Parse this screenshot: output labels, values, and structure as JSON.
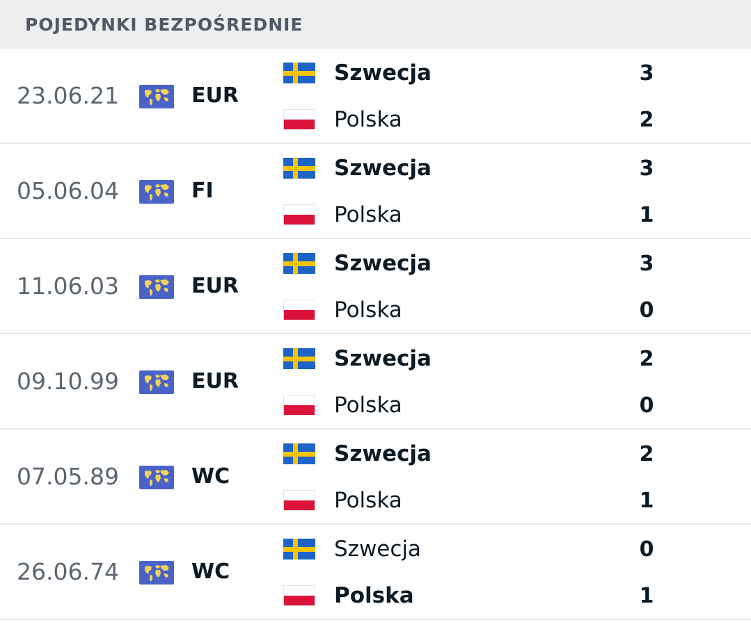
{
  "header": {
    "title": "POJEDYNKI BEZPOŚREDNIE"
  },
  "icons": {
    "competition": "world-map-icon",
    "home_flag": "sweden-flag-icon",
    "away_flag": "poland-flag-icon"
  },
  "colors": {
    "header_bg": "#eeeeee",
    "competition_icon_bg": "#4a63c9",
    "sweden_blue": "#1d63c8",
    "sweden_yellow": "#f5c400",
    "poland_red": "#dc143c"
  },
  "matches": [
    {
      "date": "23.06.21",
      "competition": "EUR",
      "home": {
        "name": "Szwecja",
        "score": "3",
        "winner": true
      },
      "away": {
        "name": "Polska",
        "score": "2",
        "winner": false
      }
    },
    {
      "date": "05.06.04",
      "competition": "FI",
      "home": {
        "name": "Szwecja",
        "score": "3",
        "winner": true
      },
      "away": {
        "name": "Polska",
        "score": "1",
        "winner": false
      }
    },
    {
      "date": "11.06.03",
      "competition": "EUR",
      "home": {
        "name": "Szwecja",
        "score": "3",
        "winner": true
      },
      "away": {
        "name": "Polska",
        "score": "0",
        "winner": false
      }
    },
    {
      "date": "09.10.99",
      "competition": "EUR",
      "home": {
        "name": "Szwecja",
        "score": "2",
        "winner": true
      },
      "away": {
        "name": "Polska",
        "score": "0",
        "winner": false
      }
    },
    {
      "date": "07.05.89",
      "competition": "WC",
      "home": {
        "name": "Szwecja",
        "score": "2",
        "winner": true
      },
      "away": {
        "name": "Polska",
        "score": "1",
        "winner": false
      }
    },
    {
      "date": "26.06.74",
      "competition": "WC",
      "home": {
        "name": "Szwecja",
        "score": "0",
        "winner": false
      },
      "away": {
        "name": "Polska",
        "score": "1",
        "winner": true
      }
    }
  ]
}
